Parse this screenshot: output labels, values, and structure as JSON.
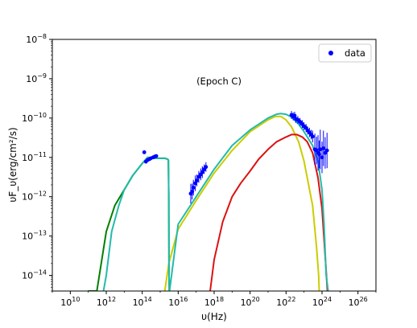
{
  "chart_data": {
    "type": "line",
    "xlabel": "υ(Hz)",
    "ylabel": "υF_υ(erg/cm²/s)",
    "xscale": "log",
    "yscale": "log",
    "xlim": [
      1000000000.0,
      1e+27
    ],
    "ylim": [
      4e-15,
      1e-08
    ],
    "grid": false,
    "x_ticks": [
      {
        "base": "10",
        "exp": "10",
        "value": 10000000000.0
      },
      {
        "base": "10",
        "exp": "12",
        "value": 1000000000000.0
      },
      {
        "base": "10",
        "exp": "14",
        "value": 100000000000000.0
      },
      {
        "base": "10",
        "exp": "16",
        "value": 1e+16
      },
      {
        "base": "10",
        "exp": "18",
        "value": 1e+18
      },
      {
        "base": "10",
        "exp": "20",
        "value": 1e+20
      },
      {
        "base": "10",
        "exp": "22",
        "value": 1e+22
      },
      {
        "base": "10",
        "exp": "24",
        "value": 1e+24
      },
      {
        "base": "10",
        "exp": "26",
        "value": 1e+26
      }
    ],
    "y_ticks": [
      {
        "base": "10",
        "exp": "−14",
        "value": 1e-14
      },
      {
        "base": "10",
        "exp": "−13",
        "value": 1e-13
      },
      {
        "base": "10",
        "exp": "−12",
        "value": 1e-12
      },
      {
        "base": "10",
        "exp": "−11",
        "value": 1e-11
      },
      {
        "base": "10",
        "exp": "−10",
        "value": 1e-10
      },
      {
        "base": "10",
        "exp": "−9",
        "value": 1e-09
      },
      {
        "base": "10",
        "exp": "−8",
        "value": 1e-08
      }
    ],
    "annotation": "(Epoch C)",
    "legend": {
      "placement": "top-right",
      "entries": [
        "data"
      ]
    },
    "series": [
      {
        "color": "#008000",
        "style": "line",
        "x": [
          100000000000.0,
          300000000000.0,
          1000000000000.0,
          3000000000000.0,
          10000000000000.0,
          30000000000000.0,
          100000000000000.0,
          200000000000000.0,
          500000000000000.0,
          1000000000000000.0,
          1800000000000000.0,
          2600000000000000.0,
          2850000000000000.0,
          3000000000000000.0,
          3100000000000000.0,
          3200000000000000.0
        ],
        "y": [
          4e-15,
          4e-15,
          1.3e-13,
          6e-13,
          1.5e-12,
          3.5e-12,
          7e-12,
          1e-11,
          9.5e-12,
          9.5e-12,
          9.5e-12,
          9e-12,
          8.5e-12,
          1e-12,
          1e-14,
          4e-15
        ]
      },
      {
        "color": "#cccc00",
        "style": "line",
        "x": [
          1800000000000000.0,
          3000000000000000.0,
          1e+16,
          1e+17,
          1e+18,
          1e+19,
          1e+20,
          1e+21,
          2.5e+21,
          5e+21,
          1e+22,
          2e+22,
          5e+22,
          1e+23,
          3e+23,
          5e+23,
          6.5e+23,
          7e+23
        ],
        "y": [
          4e-15,
          2e-14,
          1.5e-13,
          8e-13,
          4e-12,
          1.5e-11,
          4.5e-11,
          9e-11,
          1.1e-10,
          1.1e-10,
          9e-11,
          6e-11,
          2.5e-11,
          8e-12,
          6e-13,
          5e-14,
          1e-14,
          4e-15
        ]
      },
      {
        "color": "#dd1111",
        "style": "line",
        "x": [
          6e+17,
          1e+18,
          3e+18,
          1e+19,
          3e+19,
          1e+20,
          3e+20,
          1e+21,
          3e+21,
          1e+22,
          2e+22,
          4e+22,
          8e+22,
          1.5e+23,
          3e+23,
          6e+23,
          1e+24,
          1.6e+24,
          2e+24
        ],
        "y": [
          4e-15,
          2.5e-14,
          2.3e-13,
          1e-12,
          2.2e-12,
          4.5e-12,
          9e-12,
          1.6e-11,
          2.5e-11,
          3.3e-11,
          3.8e-11,
          3.8e-11,
          3.3e-11,
          2.5e-11,
          1.3e-11,
          3e-12,
          5e-13,
          2e-14,
          4e-15
        ]
      },
      {
        "color": "#22bbaa",
        "style": "line",
        "x": [
          700000000000.0,
          1000000000000.0,
          2000000000000.0,
          5000000000000.0,
          10000000000000.0,
          30000000000000.0,
          100000000000000.0,
          200000000000000.0,
          500000000000000.0,
          1000000000000000.0,
          1800000000000000.0,
          2600000000000000.0,
          2850000000000000.0,
          3000000000000000.0,
          3100000000000000.0,
          3300000000000000.0,
          1e+16,
          1e+17,
          1e+18,
          1e+19,
          1e+20,
          1e+21,
          3e+21,
          5e+21,
          1e+22,
          2e+22,
          5e+22,
          1e+23,
          3e+23,
          6e+23,
          1e+24,
          1.3e+24,
          1.7e+24,
          2.2e+24
        ],
        "y": [
          4e-15,
          1e-14,
          1.3e-13,
          6e-13,
          1.5e-12,
          3.5e-12,
          7e-12,
          1e-11,
          9.5e-12,
          9.5e-12,
          9.5e-12,
          9e-12,
          8.5e-12,
          1e-12,
          1e-14,
          4e-15,
          2e-13,
          1e-12,
          5e-12,
          2e-11,
          5e-11,
          1e-10,
          1.25e-10,
          1.3e-10,
          1.25e-10,
          1.05e-10,
          7e-11,
          4.5e-11,
          2e-11,
          8e-12,
          1.5e-12,
          2e-13,
          1e-14,
          4e-15
        ]
      },
      {
        "name": "data",
        "color": "#0000ff",
        "style": "points",
        "x": [
          130000000000000.0,
          160000000000000.0,
          200000000000000.0,
          250000000000000.0,
          300000000000000.0,
          400000000000000.0,
          500000000000000.0,
          600000000000000.0,
          5e+16,
          6e+16,
          7e+16,
          9e+16,
          1.1e+17,
          1.4e+17,
          1.8e+17,
          2.2e+17,
          2.8e+17,
          3.5e+17,
          2e+22,
          2.5e+22,
          3e+22,
          3.5e+22,
          4.5e+22,
          6e+22,
          8e+22,
          1e+23,
          1.3e+23,
          1.6e+23,
          2e+23,
          2.5e+23,
          3e+23,
          4e+23,
          5e+23,
          6e+23,
          7e+23,
          8e+23,
          1e+24,
          1.2e+24,
          1.5e+24,
          1.9e+24
        ],
        "y": [
          1.35e-11,
          7.8e-12,
          8.6e-12,
          9e-12,
          9.5e-12,
          1e-11,
          1.05e-11,
          1.08e-11,
          1.2e-12,
          1.35e-12,
          1.7e-12,
          2.2e-12,
          2.6e-12,
          3.2e-12,
          3.7e-12,
          4.2e-12,
          5e-12,
          5.7e-12,
          1.2e-10,
          1.1e-10,
          1.15e-10,
          9.5e-11,
          9e-11,
          8e-11,
          7e-11,
          6.2e-11,
          5.6e-11,
          4.8e-11,
          4.3e-11,
          3.8e-11,
          3.4e-11,
          1.6e-11,
          1.5e-11,
          1.3e-11,
          1.2e-11,
          1.6e-11,
          1e-11,
          1.7e-11,
          1.3e-11,
          1.5e-11
        ],
        "err": [
          0,
          0,
          0,
          0,
          0,
          0,
          0,
          0,
          0.25,
          0.2,
          0.2,
          0.2,
          0.15,
          0.15,
          0.15,
          0.15,
          0.12,
          0.12,
          0.1,
          0.1,
          0.1,
          0.1,
          0.1,
          0.1,
          0.1,
          0.1,
          0.1,
          0.1,
          0.12,
          0.12,
          0.15,
          0.4,
          0.35,
          0.45,
          0.35,
          0.5,
          0.4,
          0.45,
          0.4,
          0.45
        ]
      }
    ]
  }
}
